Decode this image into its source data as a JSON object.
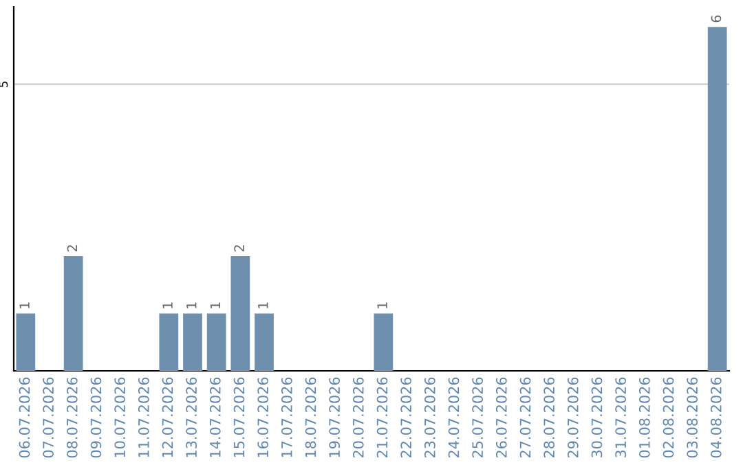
{
  "chart_data": {
    "type": "bar",
    "categories": [
      "06.07.2026",
      "07.07.2026",
      "08.07.2026",
      "09.07.2026",
      "10.07.2026",
      "11.07.2026",
      "12.07.2026",
      "13.07.2026",
      "14.07.2026",
      "15.07.2026",
      "16.07.2026",
      "17.07.2026",
      "18.07.2026",
      "19.07.2026",
      "20.07.2026",
      "21.07.2026",
      "22.07.2026",
      "23.07.2026",
      "24.07.2026",
      "25.07.2026",
      "26.07.2026",
      "27.07.2026",
      "28.07.2026",
      "29.07.2026",
      "30.07.2026",
      "31.07.2026",
      "01.08.2026",
      "02.08.2026",
      "03.08.2026",
      "04.08.2026"
    ],
    "values": [
      1,
      0,
      2,
      0,
      0,
      0,
      1,
      1,
      1,
      2,
      1,
      0,
      0,
      0,
      0,
      1,
      0,
      0,
      0,
      0,
      0,
      0,
      0,
      0,
      0,
      0,
      0,
      0,
      0,
      6
    ],
    "value_labels": [
      "1",
      null,
      "2",
      null,
      null,
      null,
      "1",
      "1",
      "1",
      "2",
      "1",
      null,
      null,
      null,
      null,
      "1",
      null,
      null,
      null,
      null,
      null,
      null,
      null,
      null,
      null,
      null,
      null,
      null,
      null,
      "6"
    ],
    "color": "#6e8fae",
    "ylim": [
      0,
      6.35
    ],
    "yticks": [
      5
    ],
    "grid": "y"
  }
}
